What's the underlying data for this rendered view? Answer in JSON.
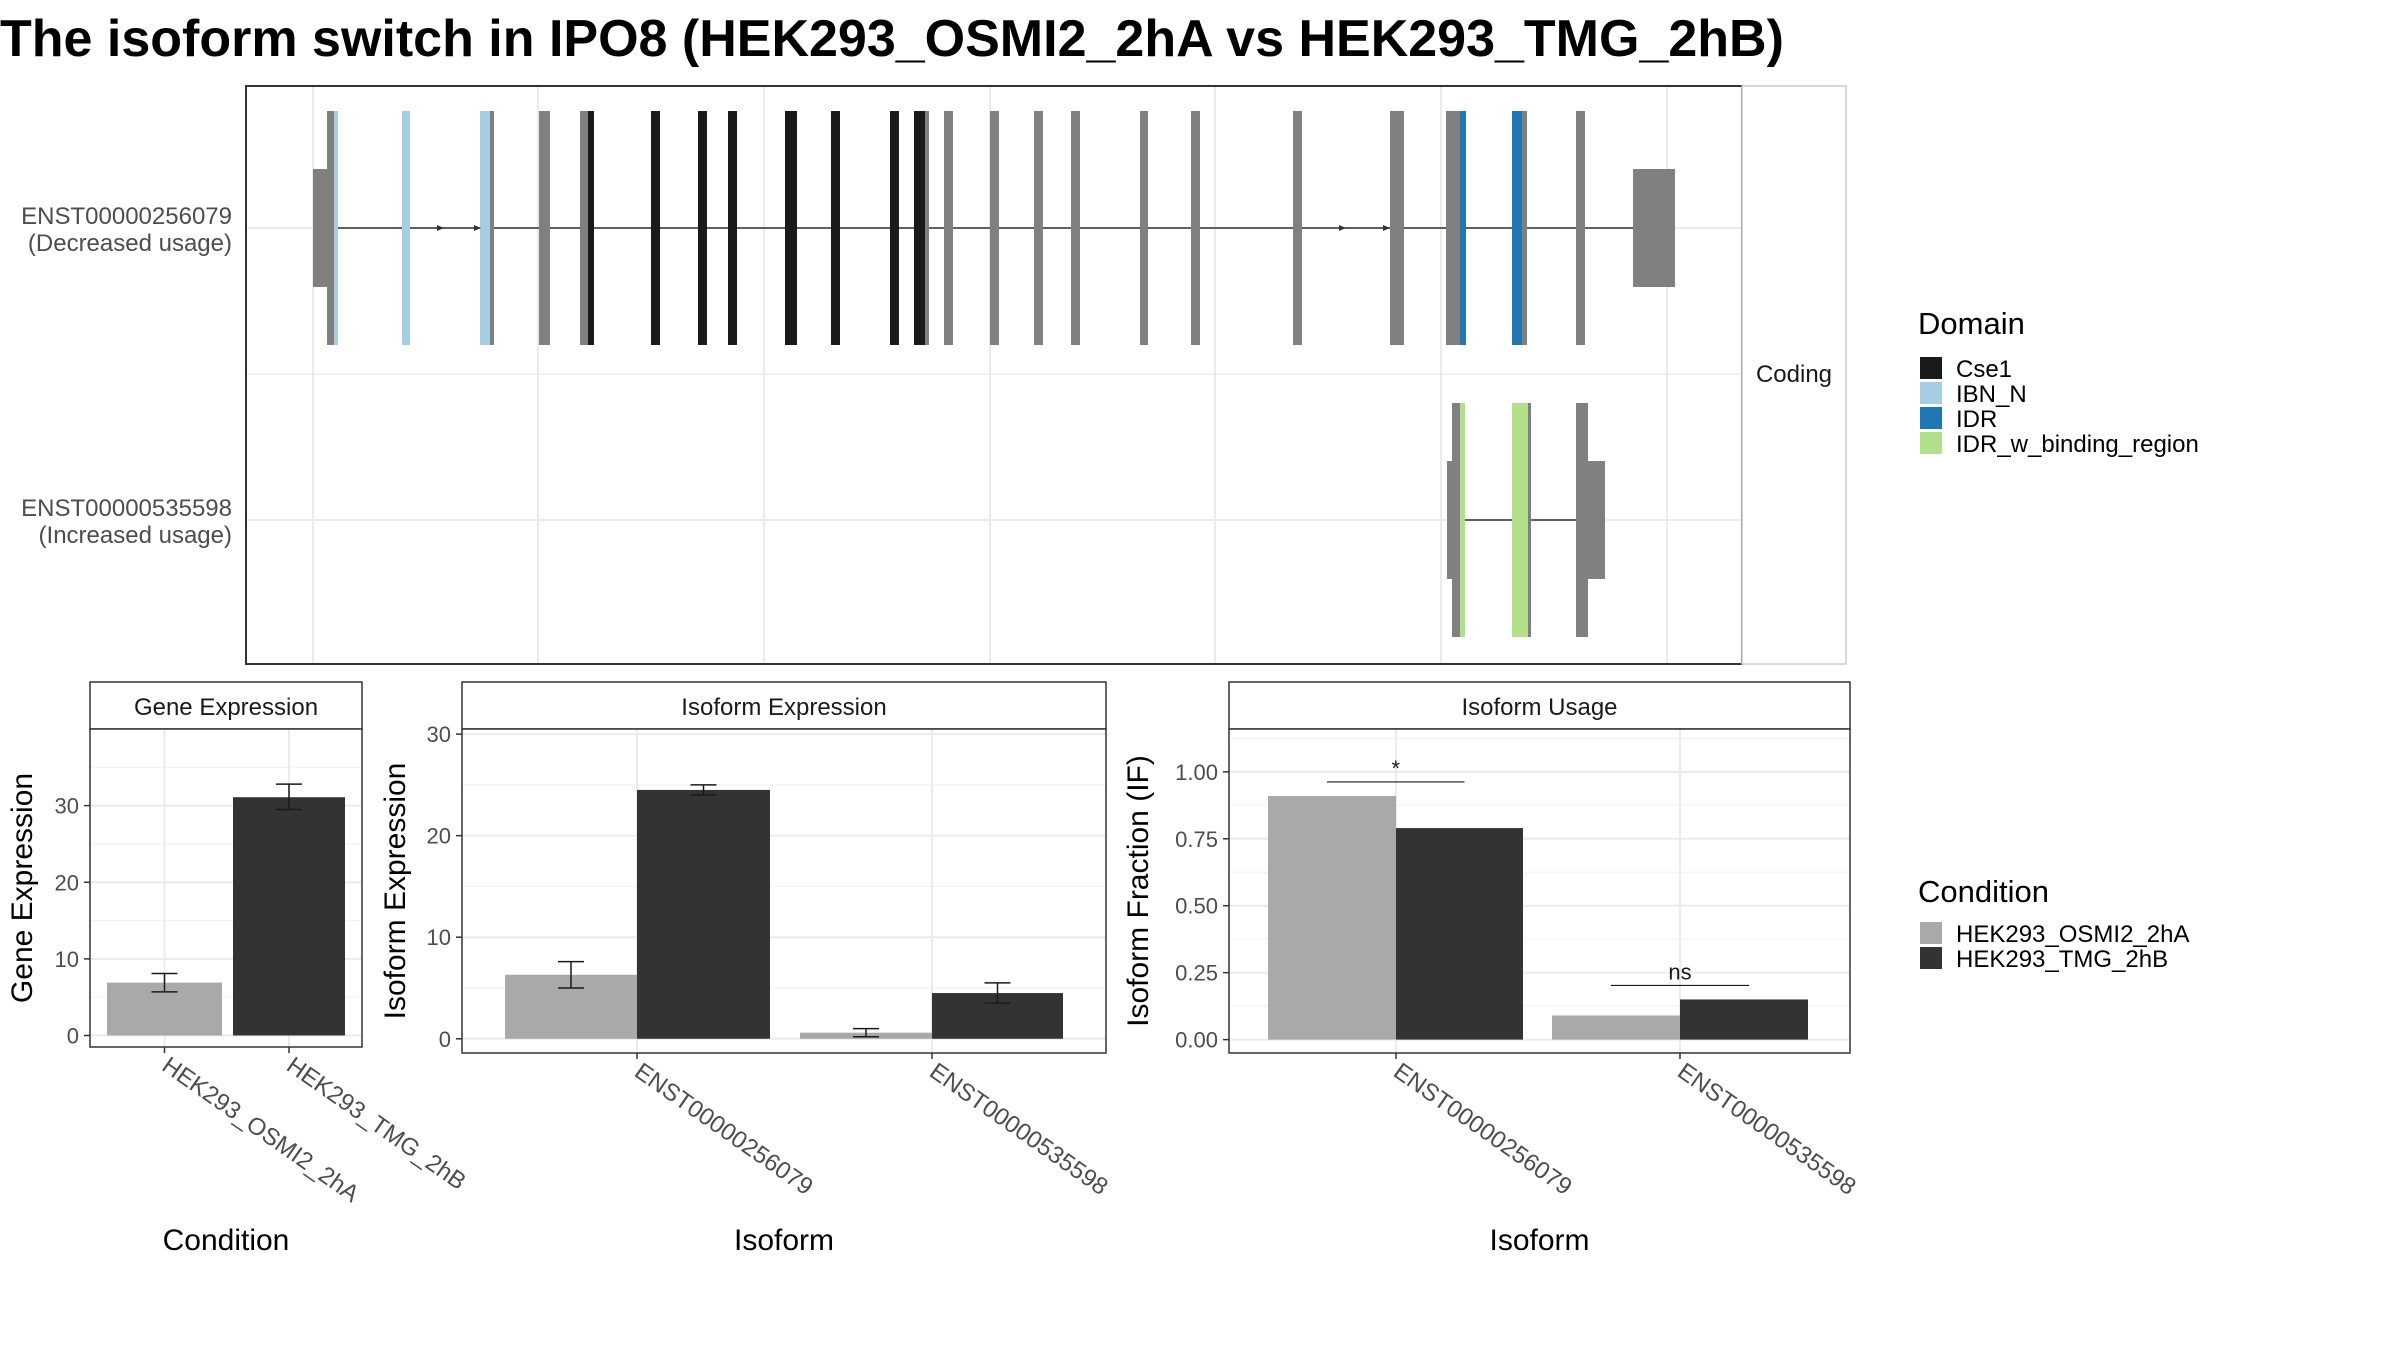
{
  "title": "The isoform switch in IPO8 (HEK293_OSMI2_2hA vs HEK293_TMG_2hB)",
  "colors": {
    "utr": "#808080",
    "Cse1": "#1a1a1a",
    "IBN_N": "#a6cee3",
    "IDR": "#1f78b4",
    "IDR_w_binding_region": "#b2df8a",
    "cond_a": "#a9a9a9",
    "cond_b": "#333333"
  },
  "transcripts": {
    "facet_label": "Coding",
    "rows": [
      {
        "id": "ENST00000256079",
        "note": "(Decreased usage)"
      },
      {
        "id": "ENST00000535598",
        "note": "(Increased usage)"
      }
    ]
  },
  "domain_legend": {
    "title": "Domain",
    "items": [
      "Cse1",
      "IBN_N",
      "IDR",
      "IDR_w_binding_region"
    ]
  },
  "condition_legend": {
    "title": "Condition",
    "items": [
      "HEK293_OSMI2_2hA",
      "HEK293_TMG_2hB"
    ]
  },
  "chart_data": [
    {
      "type": "bar",
      "title": "Gene Expression",
      "xlabel": "Condition",
      "ylabel": "Gene Expression",
      "categories": [
        "HEK293_OSMI2_2hA",
        "HEK293_TMG_2hB"
      ],
      "values": [
        6.9,
        31.1
      ],
      "errors": [
        [
          5.7,
          8.1
        ],
        [
          29.5,
          32.8
        ]
      ],
      "ylim": [
        -1.5,
        40
      ],
      "yticks": [
        0,
        10,
        20,
        30
      ]
    },
    {
      "type": "bar",
      "title": "Isoform Expression",
      "xlabel": "Isoform",
      "ylabel": "Isoform Expression",
      "categories": [
        "ENST00000256079",
        "ENST00000535598"
      ],
      "series": [
        {
          "name": "HEK293_OSMI2_2hA",
          "values": [
            6.3,
            0.6
          ],
          "errors": [
            [
              5.0,
              7.6
            ],
            [
              0.2,
              1.0
            ]
          ]
        },
        {
          "name": "HEK293_TMG_2hB",
          "values": [
            24.5,
            4.5
          ],
          "errors": [
            [
              24.0,
              25.0
            ],
            [
              3.5,
              5.5
            ]
          ]
        }
      ],
      "ylim": [
        -1.4,
        30.5
      ],
      "yticks": [
        0,
        10,
        20,
        30
      ]
    },
    {
      "type": "bar",
      "title": "Isoform Usage",
      "xlabel": "Isoform",
      "ylabel": "Isoform Fraction (IF)",
      "categories": [
        "ENST00000256079",
        "ENST00000535598"
      ],
      "series": [
        {
          "name": "HEK293_OSMI2_2hA",
          "values": [
            0.91,
            0.09
          ]
        },
        {
          "name": "HEK293_TMG_2hB",
          "values": [
            0.79,
            0.15
          ]
        }
      ],
      "significance": [
        "*",
        "ns"
      ],
      "ylim": [
        -0.05,
        1.16
      ],
      "yticks": [
        0.0,
        0.25,
        0.5,
        0.75,
        1.0
      ],
      "ytick_labels": [
        "0.00",
        "0.25",
        "0.50",
        "0.75",
        "1.00"
      ]
    }
  ]
}
